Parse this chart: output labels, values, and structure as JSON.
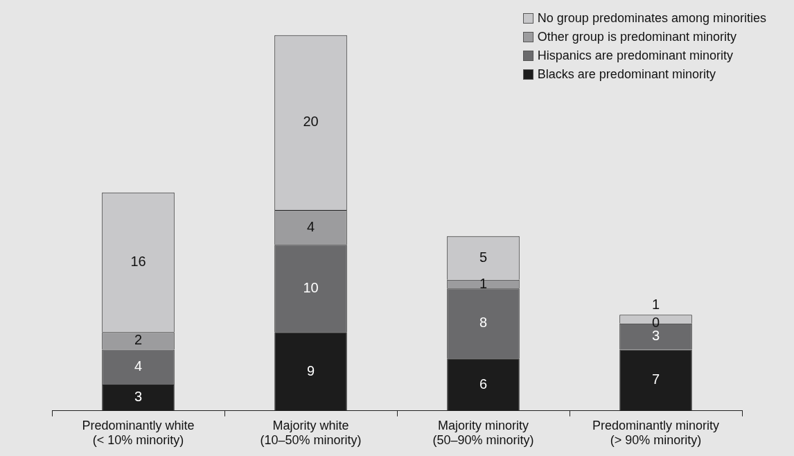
{
  "chart_data": {
    "type": "bar",
    "stacked": true,
    "data_labels": true,
    "legend": "top right",
    "grid": false,
    "categories": [
      "Predominantly white\n(< 10% minority)",
      "Majority white\n(10–50% minority)",
      "Majority minority\n(50–90% minority)",
      "Predominantly minority\n(> 90% minority)"
    ],
    "series": [
      {
        "name": "Blacks are predominant minority",
        "color": "#1c1c1c",
        "values": [
          3,
          9,
          6,
          7
        ]
      },
      {
        "name": "Hispanics are predominant minority",
        "color": "#6a6a6c",
        "values": [
          4,
          10,
          8,
          3
        ]
      },
      {
        "name": "Other group is predominant minority",
        "color": "#9c9c9e",
        "values": [
          2,
          4,
          1,
          0
        ]
      },
      {
        "name": "No group predominates among minorities",
        "color": "#c8c8ca",
        "values": [
          16,
          20,
          5,
          1
        ]
      }
    ]
  }
}
